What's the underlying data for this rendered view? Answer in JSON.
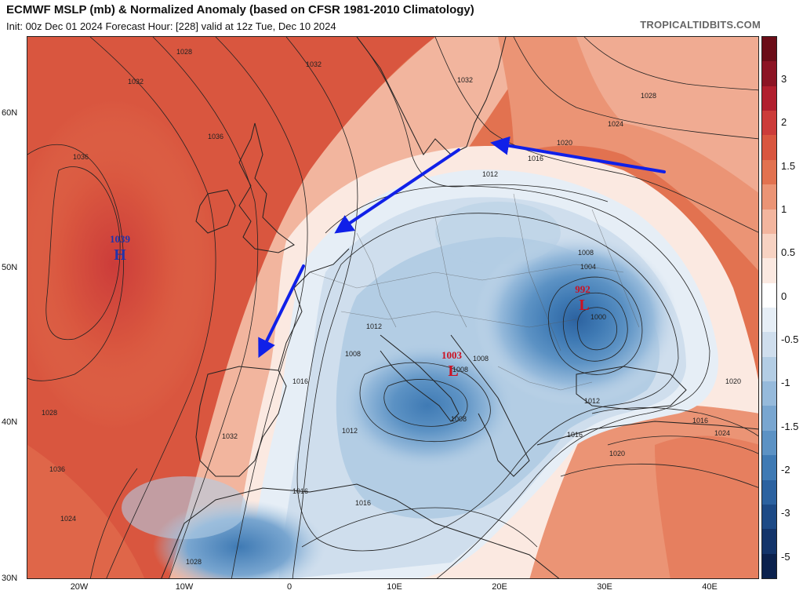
{
  "header": {
    "title": "ECMWF MSLP (mb) & Normalized Anomaly (based on CFSR 1981-2010 Climatology)",
    "subtitle": "Init: 00z Dec 01 2024   Forecast Hour: [228]   valid at 12z Tue, Dec 10 2024",
    "brand": "TROPICALTIDBITS.COM"
  },
  "axes": {
    "lat_labels": [
      "60N",
      "50N",
      "40N",
      "30N"
    ],
    "lon_labels": [
      "20W",
      "10W",
      "0",
      "10E",
      "20E",
      "30E",
      "40E"
    ]
  },
  "colorbar": {
    "labels": [
      "3",
      "2",
      "1.5",
      "1",
      "0.5",
      "0",
      "-0.5",
      "-1",
      "-1.5",
      "-2",
      "-3",
      "-5"
    ],
    "colors": [
      "#6b0d18",
      "#8c1424",
      "#b11f2e",
      "#cc3c3a",
      "#d9563f",
      "#e27250",
      "#eb9475",
      "#f2b59e",
      "#f7d2c2",
      "#fbe9e1",
      "#ffffff",
      "#e6eef6",
      "#cfdeed",
      "#b3cde4",
      "#96badb",
      "#79a6d0",
      "#5c92c4",
      "#3f7ab4",
      "#2c62a0",
      "#1d4a86",
      "#13346a",
      "#0b214d"
    ]
  },
  "pressure_centers": [
    {
      "value": "1039",
      "letter": "H",
      "color": "#2233aa"
    },
    {
      "value": "992",
      "letter": "L",
      "color": "#cc1122"
    },
    {
      "value": "1003",
      "letter": "L",
      "color": "#cc1122"
    }
  ],
  "isobar_labels": [
    "1028",
    "1032",
    "1032",
    "1036",
    "1036",
    "1032",
    "1028",
    "1024",
    "1020",
    "1016",
    "1012",
    "1008",
    "1004",
    "1000",
    "1016",
    "1012",
    "1008",
    "1008",
    "1012",
    "1012",
    "1008",
    "1016",
    "1020",
    "1016",
    "1016",
    "1016",
    "1024",
    "1024",
    "1028",
    "1036",
    "1032",
    "1028",
    "1020",
    "1008"
  ],
  "arrow_color": "#1020e8"
}
